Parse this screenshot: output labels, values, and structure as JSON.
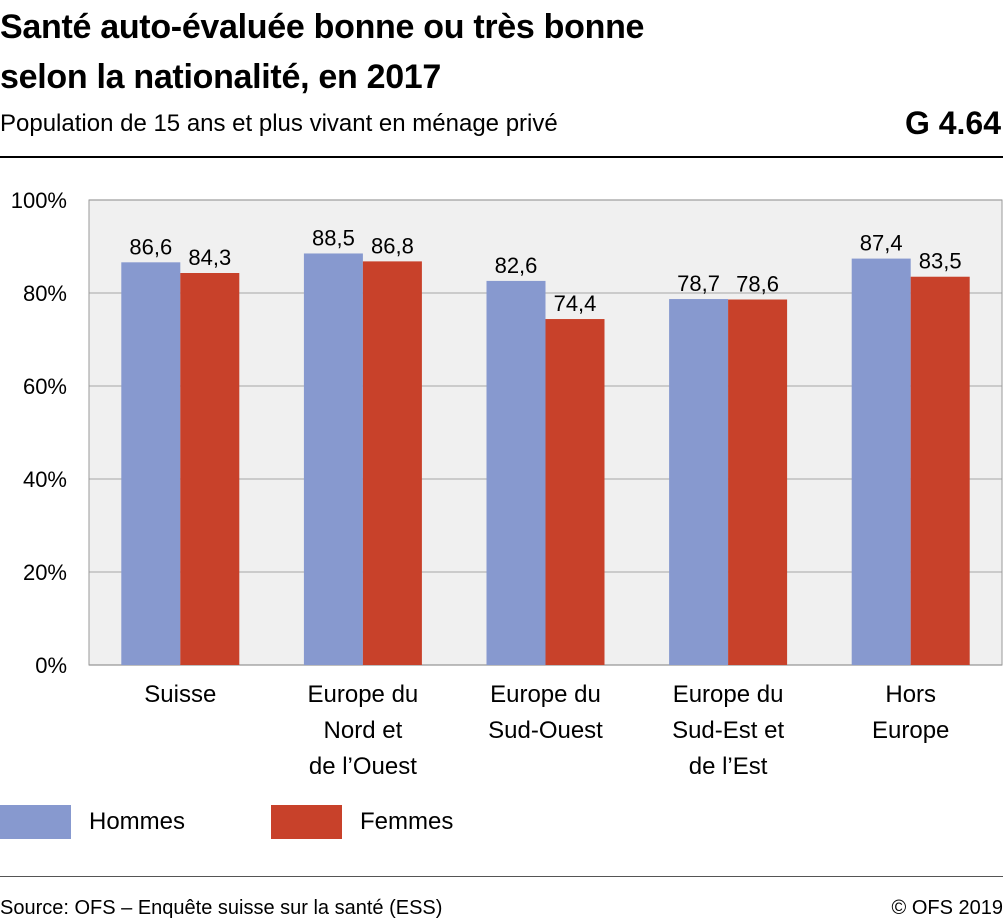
{
  "header": {
    "title_line1": "Santé auto-évaluée bonne ou très bonne",
    "title_line2": "selon la nationalité, en 2017",
    "subtitle": "Population de 15 ans et plus vivant en ménage privé",
    "code": "G 4.64"
  },
  "footer": {
    "source": "Source: OFS – Enquête suisse sur la santé (ESS)",
    "copyright": "© OFS 2019"
  },
  "colors": {
    "hommes": "#8799cf",
    "femmes": "#c8412a",
    "plot_bg": "#f0f0f0",
    "grid": "#b5b5b5"
  },
  "chart_data": {
    "type": "bar",
    "categories": [
      [
        "Suisse"
      ],
      [
        "Europe du",
        "Nord et",
        "de l’Ouest"
      ],
      [
        "Europe du",
        "Sud-Ouest"
      ],
      [
        "Europe du",
        "Sud-Est et",
        "de l’Est"
      ],
      [
        "Hors",
        "Europe"
      ]
    ],
    "series": [
      {
        "name": "Hommes",
        "values": [
          86.6,
          88.5,
          82.6,
          78.7,
          87.4
        ],
        "labels": [
          "86,6",
          "88,5",
          "82,6",
          "78,7",
          "87,4"
        ]
      },
      {
        "name": "Femmes",
        "values": [
          84.3,
          86.8,
          74.4,
          78.6,
          83.5
        ],
        "labels": [
          "84,3",
          "86,8",
          "74,4",
          "78,6",
          "83,5"
        ]
      }
    ],
    "ylim": [
      0,
      100
    ],
    "yticks": [
      0,
      20,
      40,
      60,
      80,
      100
    ],
    "ytick_labels": [
      "0%",
      "20%",
      "40%",
      "60%",
      "80%",
      "100%"
    ],
    "grid": true,
    "legend": "bottom-left"
  }
}
